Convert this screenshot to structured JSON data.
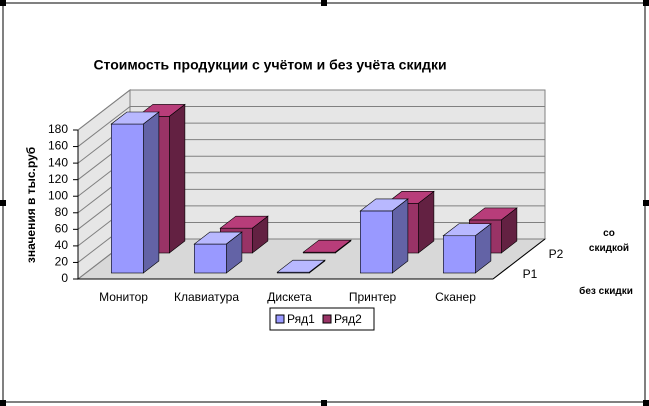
{
  "chart_data": {
    "type": "bar3d",
    "title": "Стоимость продукции с учётом и без учёта скидки",
    "y_label": "значения в тыс.руб",
    "categories": [
      "Монитор",
      "Клавиатура",
      "Дискета",
      "Принтер",
      "Сканер"
    ],
    "series": [
      {
        "name": "Ряд1",
        "color": "#9999ff",
        "values": [
          180,
          35,
          1,
          75,
          45
        ]
      },
      {
        "name": "Ряд2",
        "color": "#993366",
        "values": [
          165,
          30,
          1,
          60,
          40
        ]
      }
    ],
    "depth_labels": [
      "Р1",
      "Р2"
    ],
    "annotations": [
      "без скидки",
      "со скидкой"
    ],
    "ylim": [
      0,
      180
    ],
    "yticks": [
      0,
      20,
      40,
      60,
      80,
      100,
      120,
      140,
      160,
      180
    ],
    "grid": true
  }
}
